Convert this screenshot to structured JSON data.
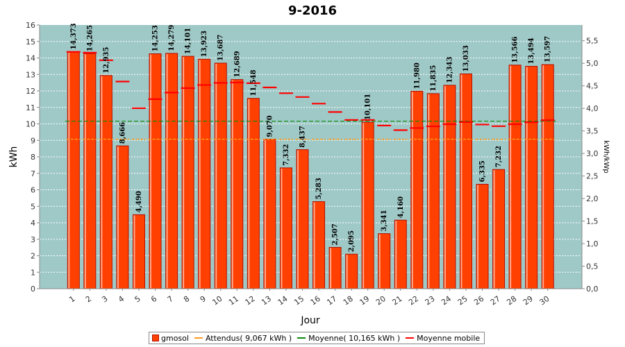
{
  "colors": {
    "plot_bg": "#9fc9c7",
    "bar_fill": "#ff4000",
    "bar_edge": "#b01000",
    "expected": "#ff9a1f",
    "average": "#0a8a0a",
    "moving": "#ff0000",
    "grid": "#ffffff"
  },
  "legend": {
    "gmosol": "gmosol",
    "attendus": "Attendus( 9,067 kWh )",
    "moyenne": "Moyenne( 10,165 kWh )",
    "mobile": "Moyenne mobile"
  },
  "chart_data": {
    "type": "bar",
    "title": "9-2016",
    "xlabel": "Jour",
    "ylabel": "kWh",
    "ylabel_right": "kWh/kWp",
    "ylim": [
      0,
      16
    ],
    "ylim_right": [
      0,
      5.85
    ],
    "yticks": [
      "0",
      "1",
      "2",
      "3",
      "4",
      "5",
      "6",
      "7",
      "8",
      "9",
      "10",
      "11",
      "12",
      "13",
      "14",
      "15",
      "16"
    ],
    "yticks_right": [
      "0,0",
      "0,5",
      "1,0",
      "1,5",
      "2,0",
      "2,5",
      "3,0",
      "3,5",
      "4,0",
      "4,5",
      "5,0",
      "5,5"
    ],
    "categories": [
      "1",
      "2",
      "3",
      "4",
      "5",
      "6",
      "7",
      "8",
      "9",
      "10",
      "11",
      "12",
      "13",
      "14",
      "15",
      "16",
      "17",
      "18",
      "19",
      "20",
      "21",
      "22",
      "23",
      "24",
      "25",
      "26",
      "27",
      "28",
      "29",
      "30"
    ],
    "series": [
      {
        "name": "gmosol",
        "values": [
          14.373,
          14.265,
          12.935,
          8.666,
          4.49,
          14.253,
          14.279,
          14.101,
          13.923,
          13.687,
          12.689,
          11.548,
          9.07,
          7.332,
          8.437,
          5.283,
          2.507,
          2.095,
          10.101,
          3.341,
          4.16,
          11.98,
          11.835,
          12.343,
          13.033,
          6.335,
          7.232,
          13.566,
          13.494,
          13.597
        ],
        "labels": [
          "14,373",
          "14,265",
          "12,935",
          "8,666",
          "4,490",
          "14,253",
          "14,279",
          "14,101",
          "13,923",
          "13,687",
          "12,689",
          "11,548",
          "9,070",
          "7,332",
          "8,437",
          "5,283",
          "2,507",
          "2,095",
          "10,101",
          "3,341",
          "4,160",
          "11,980",
          "11,835",
          "12,343",
          "13,033",
          "6,335",
          "7,232",
          "13,566",
          "13,494",
          "13,597"
        ]
      },
      {
        "name": "Attendus( 9,067 kWh )",
        "value": 9.067
      },
      {
        "name": "Moyenne( 10,165 kWh )",
        "value": 10.165
      },
      {
        "name": "Moyenne mobile",
        "values": [
          14.37,
          14.32,
          13.86,
          12.57,
          10.95,
          11.5,
          11.9,
          12.17,
          12.36,
          12.49,
          12.51,
          12.47,
          12.21,
          11.86,
          11.63,
          11.23,
          10.72,
          10.24,
          10.24,
          9.9,
          9.62,
          9.75,
          9.85,
          9.98,
          10.11,
          9.96,
          9.86,
          9.98,
          10.1,
          10.22
        ]
      }
    ]
  }
}
